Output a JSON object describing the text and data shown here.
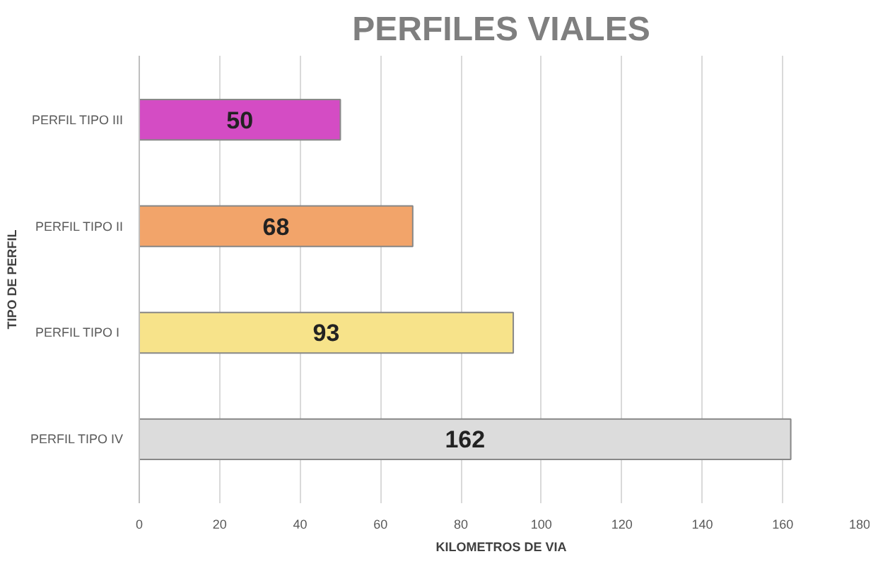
{
  "chart_data": {
    "type": "bar",
    "orientation": "horizontal",
    "title": "PERFILES VIALES",
    "xlabel": "KILOMETROS DE VIA",
    "ylabel": "TIPO DE PERFIL",
    "categories": [
      "PERFIL TIPO III",
      "PERFIL TIPO II",
      "PERFIL  TIPO I",
      "PERFIL TIPO IV"
    ],
    "values": [
      50,
      68,
      93,
      162
    ],
    "colors": [
      "#d44cc4",
      "#f2a46a",
      "#f7e38a",
      "#dcdcdc"
    ],
    "xlim": [
      0,
      180
    ],
    "xticks": [
      0,
      20,
      40,
      60,
      80,
      100,
      120,
      140,
      160,
      180
    ],
    "grid": "x",
    "data_labels": true
  }
}
